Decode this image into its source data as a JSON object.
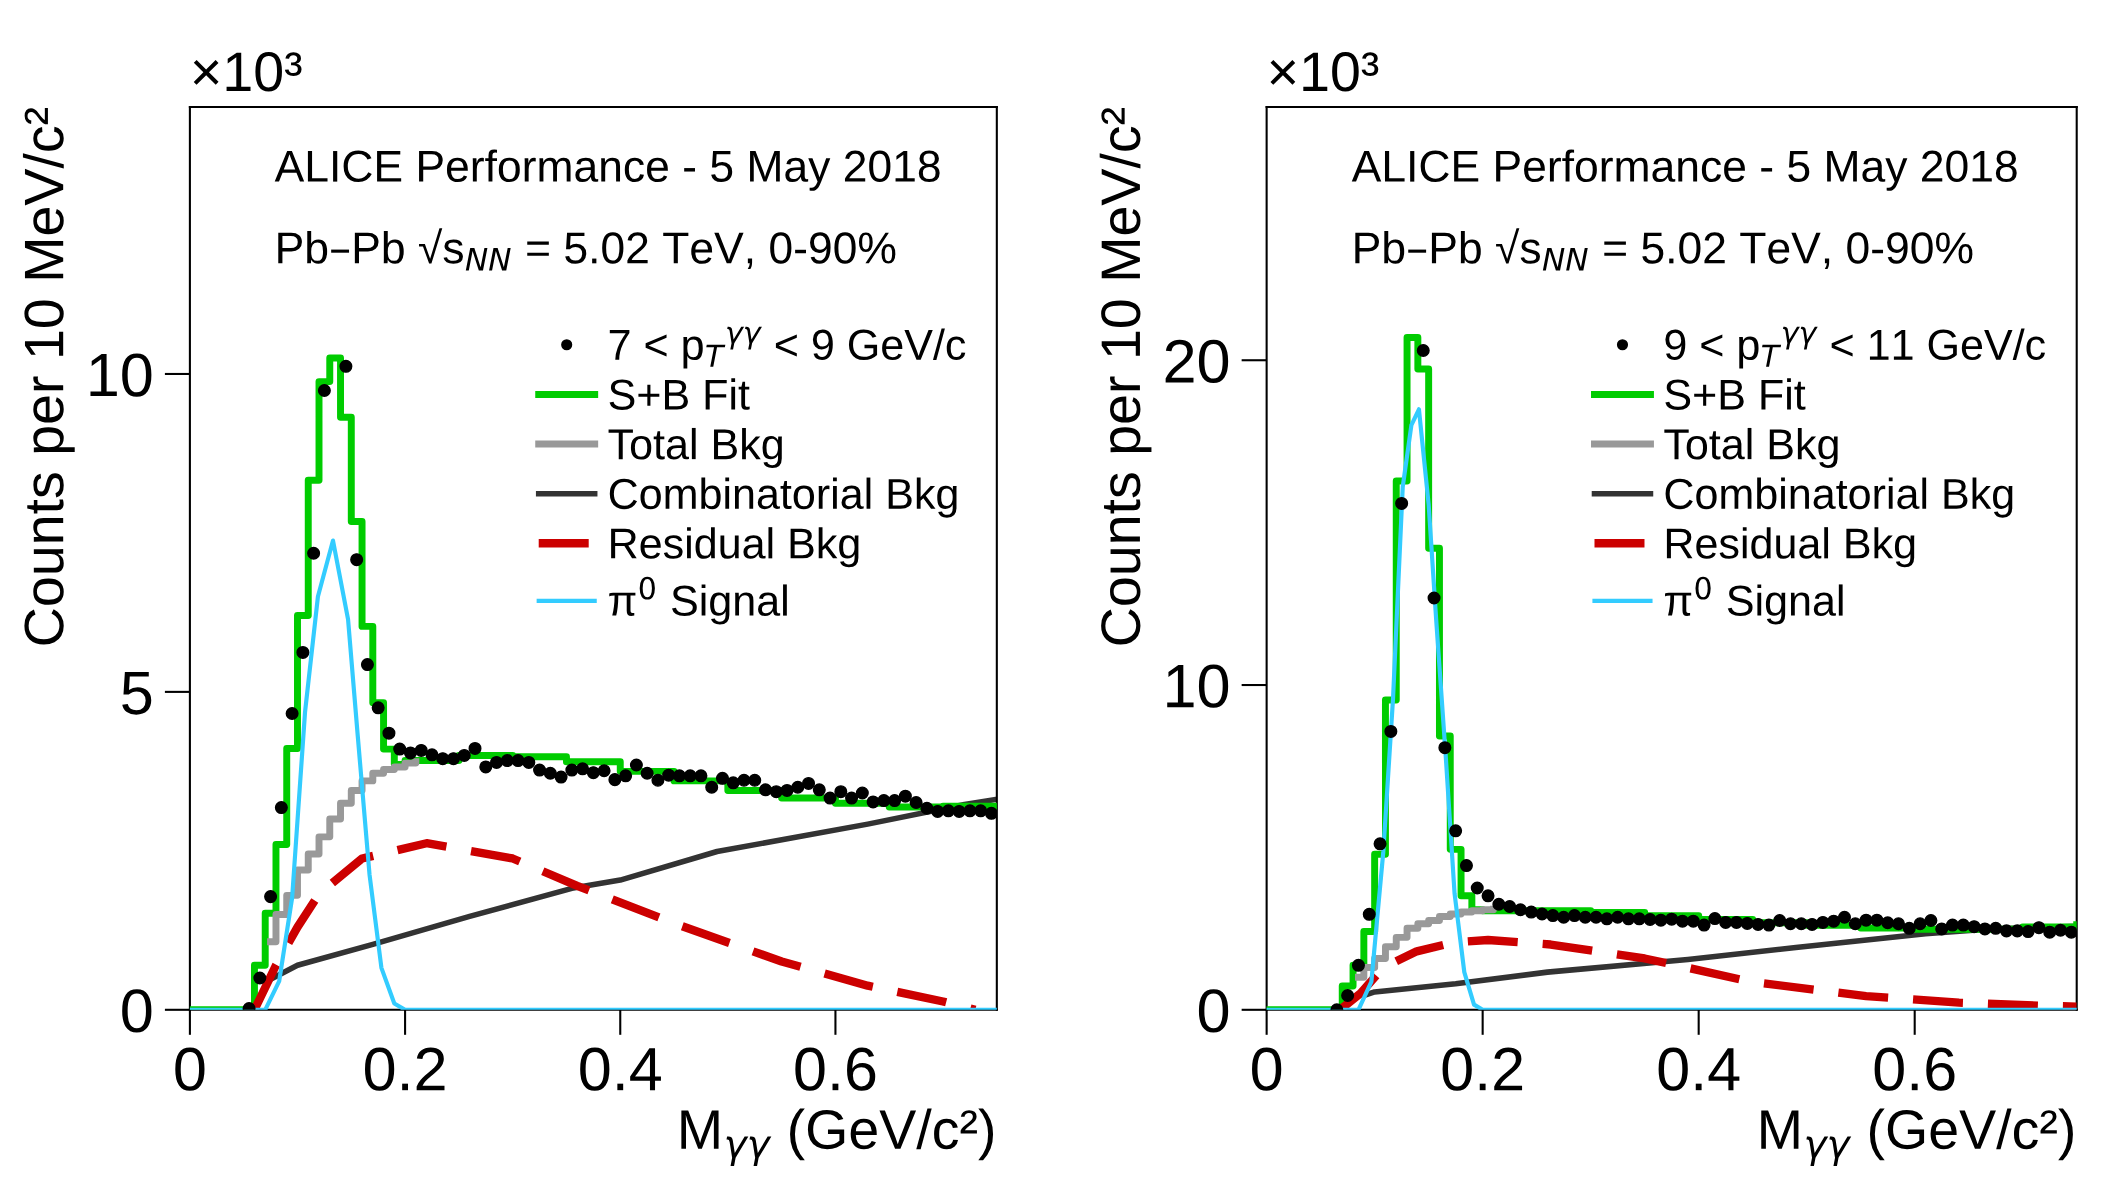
{
  "chart_data": [
    {
      "type": "step",
      "xlabel": "M$_{γγ}$ (GeV/c²)",
      "ylabel": "Counts per 10 MeV/c²",
      "annotations": [
        "×10³",
        "ALICE Performance - 5 May 2018",
        "Pb–Pb √s$_{NN}$ = 5.02 TeV, 0-90%"
      ],
      "xlim": [
        0,
        0.75
      ],
      "ylim": [
        0,
        14.2
      ],
      "xticks": [
        0,
        0.2,
        0.4,
        0.6
      ],
      "yticks": [
        0,
        5,
        10
      ],
      "grid": false,
      "legend": "top right",
      "series": [
        {
          "name": "7 < p$_{T}$$^{γγ}$ < 9 GeV/c",
          "type": "scatter",
          "marker": "circle",
          "color": "#000000",
          "x": [
            0.055,
            0.065,
            0.075,
            0.085,
            0.095,
            0.105,
            0.115,
            0.125,
            0.135,
            0.145,
            0.155,
            0.165,
            0.175,
            0.185,
            0.195,
            0.205,
            0.215,
            0.225,
            0.235,
            0.245,
            0.255,
            0.265,
            0.275,
            0.285,
            0.295,
            0.305,
            0.315,
            0.325,
            0.335,
            0.345,
            0.355,
            0.365,
            0.375,
            0.385,
            0.395,
            0.405,
            0.415,
            0.425,
            0.435,
            0.445,
            0.455,
            0.465,
            0.475,
            0.485,
            0.495,
            0.505,
            0.515,
            0.525,
            0.535,
            0.545,
            0.555,
            0.565,
            0.575,
            0.585,
            0.595,
            0.605,
            0.615,
            0.625,
            0.635,
            0.645,
            0.655,
            0.665,
            0.675,
            0.685,
            0.695,
            0.705,
            0.715,
            0.725,
            0.735,
            0.745
          ],
          "values": [
            0.02,
            0.5,
            1.78,
            3.18,
            4.66,
            5.62,
            7.18,
            9.74,
            null,
            10.12,
            7.08,
            5.43,
            4.75,
            4.35,
            4.1,
            4.04,
            4.08,
            4.01,
            3.95,
            3.95,
            4.0,
            4.11,
            3.82,
            3.89,
            3.92,
            3.92,
            3.89,
            3.77,
            3.72,
            3.66,
            3.77,
            3.79,
            3.73,
            3.76,
            3.62,
            3.68,
            3.85,
            3.72,
            3.61,
            3.69,
            3.68,
            3.68,
            3.68,
            3.5,
            3.64,
            3.57,
            3.61,
            3.61,
            3.46,
            3.43,
            3.45,
            3.5,
            3.56,
            3.46,
            3.33,
            3.43,
            3.33,
            3.41,
            3.27,
            3.29,
            3.29,
            3.36,
            3.26,
            3.17,
            3.12,
            3.13,
            3.12,
            3.13,
            3.13,
            3.09
          ]
        },
        {
          "name": "S+B Fit",
          "color": "#00cc00",
          "x": [
            0,
            0.06,
            0.07,
            0.08,
            0.09,
            0.1,
            0.11,
            0.12,
            0.13,
            0.14,
            0.15,
            0.16,
            0.17,
            0.18,
            0.19,
            0.2,
            0.25,
            0.3,
            0.35,
            0.4,
            0.45,
            0.5,
            0.55,
            0.6,
            0.65,
            0.7,
            0.75
          ],
          "values": [
            0,
            0.7,
            1.52,
            2.6,
            4.11,
            6.2,
            8.33,
            9.88,
            10.25,
            9.32,
            7.68,
            6.03,
            4.83,
            4.1,
            3.86,
            3.92,
            4.0,
            3.98,
            3.9,
            3.75,
            3.6,
            3.45,
            3.33,
            3.25,
            3.19,
            3.2,
            3.2
          ]
        },
        {
          "name": "Total Bkg",
          "color": "#999999",
          "x": [
            0.075,
            0.08,
            0.09,
            0.1,
            0.11,
            0.12,
            0.13,
            0.14,
            0.15,
            0.16,
            0.17,
            0.18,
            0.19,
            0.2,
            0.21
          ],
          "values": [
            1.07,
            1.5,
            1.8,
            2.2,
            2.45,
            2.72,
            3.0,
            3.25,
            3.45,
            3.6,
            3.72,
            3.78,
            3.82,
            3.88,
            3.9
          ]
        },
        {
          "name": "Combinatorial Bkg",
          "type": "line",
          "color": "#333333",
          "x": [
            0.075,
            0.1,
            0.17,
            0.26,
            0.355,
            0.4,
            0.49,
            0.63,
            0.72,
            0.75
          ],
          "values": [
            0.48,
            0.7,
            1.03,
            1.47,
            1.91,
            2.04,
            2.49,
            2.92,
            3.23,
            3.31
          ]
        },
        {
          "name": "Residual Bkg",
          "type": "line",
          "line_style": "dashed",
          "color": "#cc0000",
          "x": [
            0.06,
            0.08,
            0.1,
            0.12,
            0.16,
            0.22,
            0.3,
            0.36,
            0.45,
            0.55,
            0.63,
            0.7,
            0.73
          ],
          "values": [
            0,
            0.7,
            1.3,
            1.82,
            2.38,
            2.62,
            2.38,
            1.95,
            1.36,
            0.76,
            0.38,
            0.13,
            0.0
          ]
        },
        {
          "name": "π$^{0}$ Signal",
          "type": "line",
          "color": "#33ccff",
          "x": [
            0,
            0.07,
            0.083,
            0.095,
            0.107,
            0.119,
            0.133,
            0.147,
            0.156,
            0.167,
            0.178,
            0.19,
            0.2,
            0.75
          ],
          "values": [
            0,
            0,
            0.45,
            1.76,
            4.68,
            6.5,
            7.38,
            6.14,
            4.31,
            2.12,
            0.66,
            0.1,
            0,
            0
          ]
        }
      ]
    },
    {
      "type": "step",
      "xlabel": "M$_{γγ}$ (GeV/c²)",
      "ylabel": "Counts per 10 MeV/c²",
      "annotations": [
        "×10³",
        "ALICE Performance - 5 May 2018",
        "Pb–Pb √s$_{NN}$ = 5.02 TeV, 0-90%"
      ],
      "xlim": [
        0,
        0.75
      ],
      "ylim": [
        0,
        27.8
      ],
      "xticks": [
        0,
        0.2,
        0.4,
        0.6
      ],
      "yticks": [
        0,
        10,
        20
      ],
      "grid": false,
      "legend": "top right",
      "series": [
        {
          "name": "9 < p$_{T}$$^{γγ}$ < 11 GeV/c",
          "type": "scatter",
          "marker": "circle",
          "color": "#000000",
          "x": [
            0.065,
            0.075,
            0.085,
            0.095,
            0.105,
            0.115,
            0.125,
            0.135,
            0.145,
            0.155,
            0.165,
            0.175,
            0.185,
            0.195,
            0.205,
            0.215,
            0.225,
            0.235,
            0.245,
            0.255,
            0.265,
            0.275,
            0.285,
            0.295,
            0.305,
            0.315,
            0.325,
            0.335,
            0.345,
            0.355,
            0.365,
            0.375,
            0.385,
            0.395,
            0.405,
            0.415,
            0.425,
            0.435,
            0.445,
            0.455,
            0.465,
            0.475,
            0.485,
            0.495,
            0.505,
            0.515,
            0.525,
            0.535,
            0.545,
            0.555,
            0.565,
            0.575,
            0.585,
            0.595,
            0.605,
            0.615,
            0.625,
            0.635,
            0.645,
            0.655,
            0.665,
            0.675,
            0.685,
            0.695,
            0.705,
            0.715,
            0.725,
            0.735,
            0.745
          ],
          "values": [
            0,
            0.44,
            1.37,
            2.94,
            5.11,
            8.57,
            15.59,
            null,
            20.3,
            12.68,
            8.07,
            5.51,
            4.44,
            3.75,
            3.51,
            3.25,
            3.18,
            3.08,
            3.01,
            2.95,
            2.9,
            2.85,
            2.9,
            2.85,
            2.85,
            2.8,
            2.85,
            2.8,
            2.8,
            2.78,
            2.76,
            2.79,
            2.73,
            2.73,
            2.61,
            2.81,
            2.69,
            2.69,
            2.66,
            2.63,
            2.61,
            2.75,
            2.65,
            2.65,
            2.63,
            2.69,
            2.73,
            2.85,
            2.65,
            2.76,
            2.76,
            2.68,
            2.65,
            2.51,
            2.65,
            2.75,
            2.49,
            2.61,
            2.61,
            2.56,
            2.49,
            2.51,
            2.43,
            2.43,
            2.41,
            2.53,
            2.39,
            2.45,
            2.39
          ]
        },
        {
          "name": "S+B Fit",
          "color": "#00cc00",
          "x": [
            0,
            0.07,
            0.08,
            0.09,
            0.1,
            0.11,
            0.12,
            0.13,
            0.14,
            0.15,
            0.16,
            0.17,
            0.18,
            0.19,
            0.2,
            0.25,
            0.3,
            0.35,
            0.4,
            0.45,
            0.5,
            0.55,
            0.6,
            0.65,
            0.7,
            0.75
          ],
          "values": [
            0,
            0.73,
            1.37,
            2.41,
            4.79,
            9.54,
            16.28,
            20.7,
            19.73,
            14.21,
            8.43,
            4.94,
            3.51,
            3.08,
            3.05,
            3.05,
            3.0,
            2.9,
            2.78,
            2.68,
            2.6,
            2.52,
            2.48,
            2.48,
            2.55,
            2.62
          ]
        },
        {
          "name": "Total Bkg",
          "color": "#999999",
          "x": [
            0.085,
            0.09,
            0.1,
            0.11,
            0.12,
            0.13,
            0.14,
            0.15,
            0.16,
            0.17,
            0.18,
            0.19,
            0.2,
            0.21
          ],
          "values": [
            1.0,
            1.3,
            1.58,
            1.94,
            2.23,
            2.51,
            2.65,
            2.75,
            2.87,
            2.95,
            3.01,
            3.05,
            3.08,
            3.1
          ]
        },
        {
          "name": "Combinatorial Bkg",
          "type": "line",
          "color": "#333333",
          "x": [
            0.09,
            0.1,
            0.175,
            0.26,
            0.39,
            0.49,
            0.61,
            0.67,
            0.75
          ],
          "values": [
            0.44,
            0.55,
            0.8,
            1.16,
            1.55,
            1.92,
            2.34,
            2.49,
            2.57
          ]
        },
        {
          "name": "Residual Bkg",
          "type": "line",
          "line_style": "dashed",
          "color": "#cc0000",
          "x": [
            0.068,
            0.087,
            0.108,
            0.139,
            0.174,
            0.205,
            0.263,
            0.35,
            0.38,
            0.447,
            0.555,
            0.641,
            0.72,
            0.75
          ],
          "values": [
            0,
            0.51,
            1.3,
            1.8,
            2.08,
            2.15,
            2.01,
            1.58,
            1.37,
            0.87,
            0.42,
            0.22,
            0.12,
            0.1
          ]
        },
        {
          "name": "π$^{0}$ Signal",
          "type": "line",
          "color": "#33ccff",
          "x": [
            0,
            0.085,
            0.097,
            0.108,
            0.117,
            0.126,
            0.134,
            0.141,
            0.15,
            0.157,
            0.166,
            0.174,
            0.183,
            0.192,
            0.2,
            0.75
          ],
          "values": [
            0,
            0,
            0.87,
            4.86,
            9.57,
            16.1,
            18.0,
            18.49,
            15.56,
            12.0,
            7.72,
            3.58,
            1.16,
            0.16,
            0,
            0
          ]
        }
      ]
    }
  ]
}
